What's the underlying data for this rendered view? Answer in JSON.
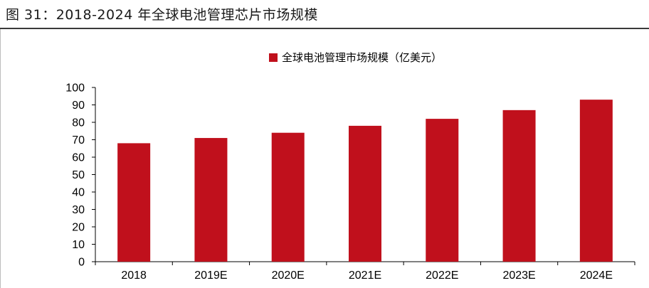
{
  "figure": {
    "title": "图 31：2018-2024 年全球电池管理芯片市场规模"
  },
  "colors": {
    "bar": "#C0101C",
    "axis": "#000000",
    "text": "#000000"
  },
  "chart_data": {
    "type": "bar",
    "categories": [
      "2018",
      "2019E",
      "2020E",
      "2021E",
      "2022E",
      "2023E",
      "2024E"
    ],
    "series": [
      {
        "name": "全球电池管理市场规模（亿美元）",
        "values": [
          68,
          71,
          74,
          78,
          82,
          87,
          93
        ]
      }
    ],
    "title": "",
    "xlabel": "",
    "ylabel": "",
    "ylim": [
      0,
      100
    ],
    "yticks": [
      0,
      10,
      20,
      30,
      40,
      50,
      60,
      70,
      80,
      90,
      100
    ],
    "grid": false,
    "legend": "top-center"
  }
}
